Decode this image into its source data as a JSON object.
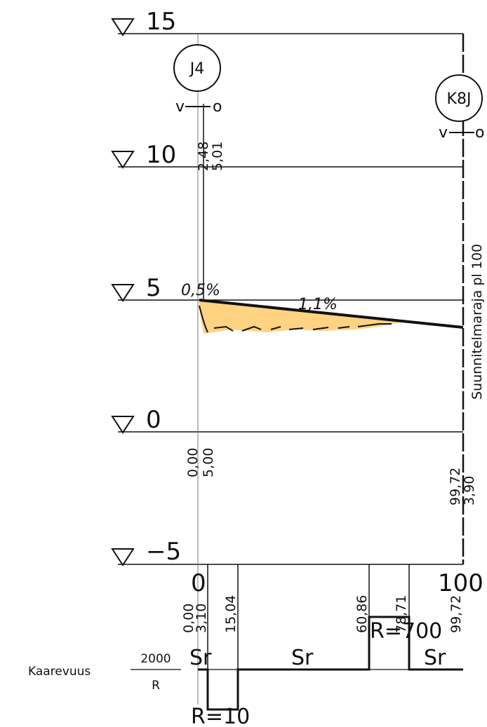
{
  "elevations": [
    {
      "value": 15,
      "label": "15"
    },
    {
      "value": 10,
      "label": "10"
    },
    {
      "value": 5,
      "label": "5"
    },
    {
      "value": 0,
      "label": "0"
    },
    {
      "value": -5,
      "label": "−5"
    }
  ],
  "wells": {
    "left": {
      "id": "J4",
      "left_mark": "v",
      "right_mark": "o"
    },
    "right": {
      "id": "K8J",
      "left_mark": "v",
      "right_mark": "o"
    }
  },
  "pipe_labels": {
    "left_top": "2,48",
    "left_bottom": "5,01",
    "start_slope": "0,5%",
    "main_slope": "1,1%"
  },
  "station_labels": {
    "start_station": "0,00",
    "start_depth": "5,00",
    "end_station": "99,72",
    "end_depth": "3,90"
  },
  "side_label": "Suunnitelmaraja pl 100",
  "axis": {
    "start": "0",
    "end": "100"
  },
  "curvature_band": {
    "stations": [
      "0,00",
      "3,10",
      "15,04",
      "60,86",
      "78,71",
      "99,72"
    ],
    "tokens": [
      "Sr",
      "Sr",
      "Sr"
    ],
    "radius_up": "R=700",
    "radius_down": "R=10",
    "title": "Kaarevuus",
    "numerator": "2000",
    "denominator": "R"
  }
}
